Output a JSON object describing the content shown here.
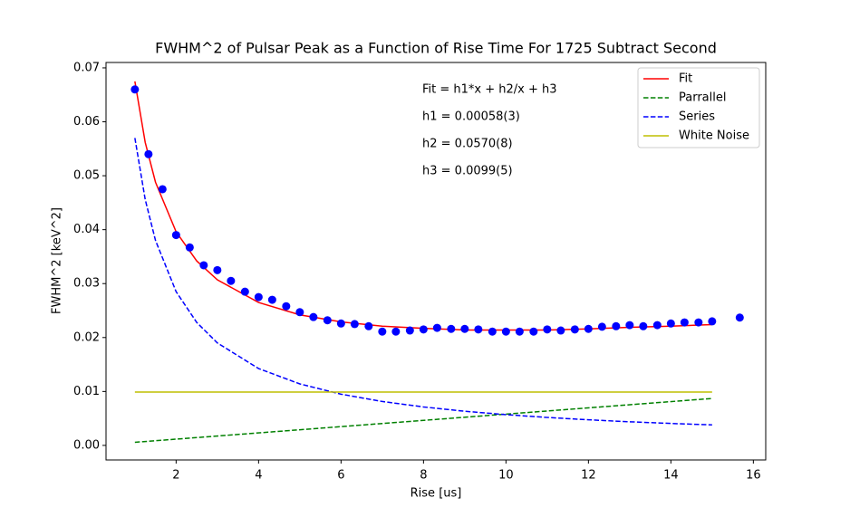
{
  "chart_data": {
    "type": "line",
    "title": "FWHM^2 of Pulsar Peak as a Function of Rise Time For 1725 Subtract Second",
    "xlabel": "Rise [us]",
    "ylabel": "FWHM^2 [keV^2]",
    "annotations": [
      "Fit = h1*x + h2/x + h3",
      "h1 = 0.00058(3)",
      "h2 = 0.0570(8)",
      "h3 = 0.0099(5)"
    ],
    "xlim": [
      0.3,
      16.3
    ],
    "ylim": [
      -0.0027,
      0.071
    ],
    "xticks": [
      2,
      4,
      6,
      8,
      10,
      12,
      14,
      16
    ],
    "yticks": [
      {
        "value": 0,
        "label": "0.00"
      },
      0.01,
      0.02,
      0.03,
      0.04,
      0.05,
      0.06,
      0.07
    ],
    "legend": "upper right",
    "points": {
      "color": "#0000ff",
      "x": [
        1,
        1.33,
        1.67,
        2,
        2.33,
        2.67,
        3,
        3.33,
        3.67,
        4,
        4.33,
        4.67,
        5,
        5.33,
        5.67,
        6,
        6.33,
        6.67,
        7,
        7.33,
        7.67,
        8,
        8.33,
        8.67,
        9,
        9.33,
        9.67,
        10,
        10.33,
        10.67,
        11,
        11.33,
        11.67,
        12,
        12.33,
        12.67,
        13,
        13.33,
        13.67,
        14,
        14.33,
        14.67,
        15,
        15.67
      ],
      "values": [
        0.066,
        0.054,
        0.0475,
        0.039,
        0.0367,
        0.0334,
        0.0325,
        0.0305,
        0.0285,
        0.0275,
        0.027,
        0.0258,
        0.0247,
        0.0238,
        0.0232,
        0.0226,
        0.0225,
        0.0221,
        0.0211,
        0.0211,
        0.0213,
        0.0215,
        0.0218,
        0.0216,
        0.0216,
        0.0215,
        0.0211,
        0.0211,
        0.0211,
        0.0211,
        0.0215,
        0.0213,
        0.0215,
        0.0216,
        0.022,
        0.0221,
        0.0223,
        0.0221,
        0.0223,
        0.0226,
        0.0228,
        0.0228,
        0.023,
        0.0237
      ]
    },
    "series": [
      {
        "name": "Fit",
        "color": "#ff0000",
        "dashed": false,
        "x": [
          1,
          1.25,
          1.5,
          2,
          2.5,
          3,
          4,
          5,
          6,
          7,
          8,
          9,
          10,
          11,
          12,
          13,
          14,
          15
        ],
        "values": [
          0.0675,
          0.0562,
          0.0488,
          0.0396,
          0.0342,
          0.0307,
          0.0265,
          0.0242,
          0.0229,
          0.0221,
          0.0217,
          0.0214,
          0.0214,
          0.0214,
          0.0216,
          0.0219,
          0.0221,
          0.0224
        ]
      },
      {
        "name": "Parrallel",
        "color": "#008000",
        "dashed": true,
        "x": [
          1,
          15
        ],
        "values": [
          0.00058,
          0.0087
        ]
      },
      {
        "name": "Series",
        "color": "#0000ff",
        "dashed": true,
        "x": [
          1,
          1.25,
          1.5,
          2,
          2.5,
          3,
          4,
          5,
          6,
          7,
          8,
          9,
          10,
          11,
          12,
          13,
          14,
          15
        ],
        "values": [
          0.057,
          0.0456,
          0.038,
          0.0285,
          0.0228,
          0.019,
          0.01425,
          0.0114,
          0.0095,
          0.00814,
          0.00713,
          0.00633,
          0.0057,
          0.00518,
          0.00475,
          0.00438,
          0.00407,
          0.0038
        ]
      },
      {
        "name": "White Noise",
        "color": "#bfbf00",
        "dashed": false,
        "x": [
          1,
          15
        ],
        "values": [
          0.0099,
          0.0099
        ]
      }
    ]
  }
}
